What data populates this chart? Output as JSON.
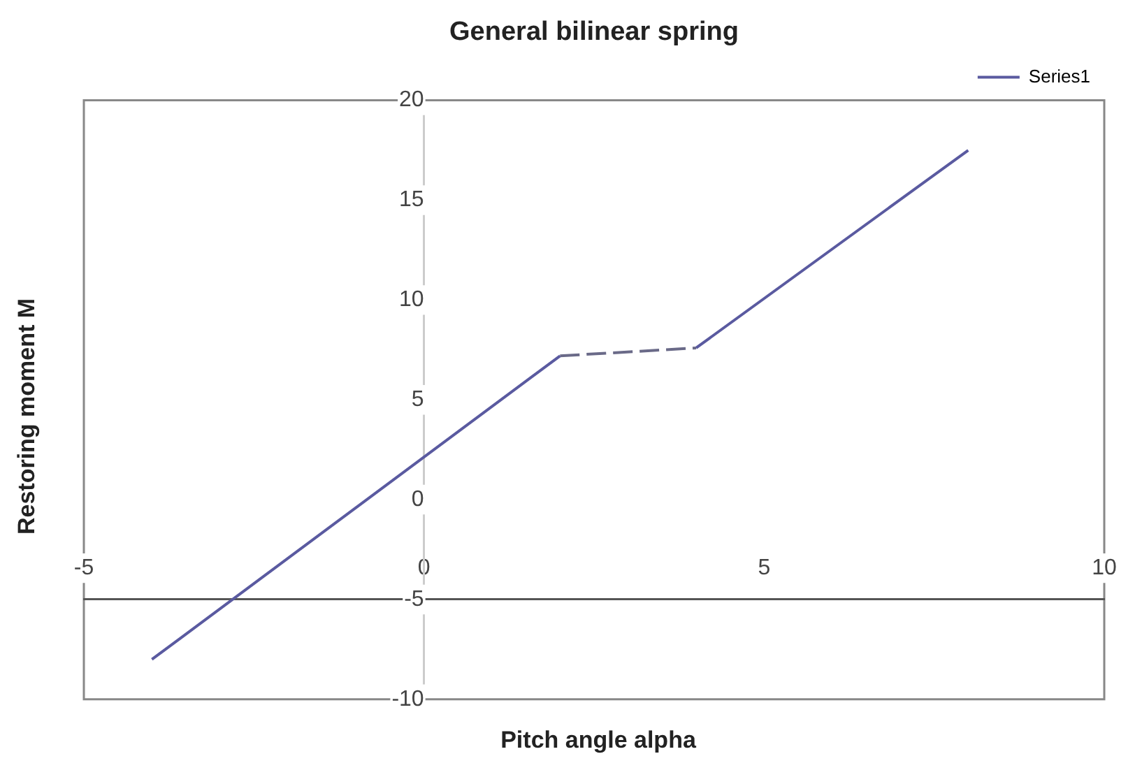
{
  "chart_data": {
    "type": "line",
    "title": "General bilinear spring",
    "xlabel": "Pitch angle alpha",
    "ylabel": "Restoring moment M",
    "series": [
      {
        "name": "Series1",
        "color": "#5a5aa0",
        "x": [
          -4,
          2,
          3,
          4,
          8
        ],
        "values": [
          -8,
          7.2,
          null,
          7.6,
          17.5
        ]
      },
      {
        "color": "#6a6a88",
        "x": [
          2,
          4
        ],
        "values": [
          7.2,
          7.6
        ],
        "line_style": "dashed"
      }
    ],
    "xlim": [
      -5,
      10
    ],
    "xticks": [
      -5,
      0,
      5,
      10
    ],
    "ylim": [
      -10,
      20
    ],
    "yticks": [
      -10,
      -5,
      0,
      5,
      10,
      15,
      20
    ],
    "legend": "top right",
    "marker": "none",
    "line_style": "solid"
  }
}
